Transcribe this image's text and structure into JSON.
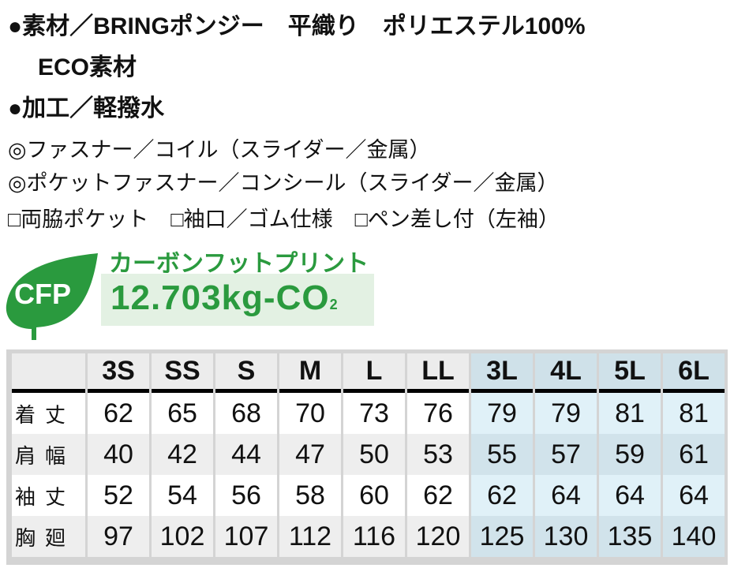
{
  "spec": {
    "material": "●素材／BRINGポンジー　平織り　ポリエステル100%",
    "material_note": "ECO素材",
    "processing": "●加工／軽撥水",
    "fastener": "◎ファスナー／コイル（スライダー／金属）",
    "pocket_fastener": "◎ポケットファスナー／コンシール（スライダー／金属）",
    "features": [
      "□両脇ポケット",
      "□袖口／ゴム仕様",
      "□ペン差し付（左袖）"
    ]
  },
  "cfp": {
    "badge": "CFP",
    "title": "カーボンフットプリント",
    "value": "12.703kg-CO",
    "subscript": "2",
    "color": "#2a9a3e"
  },
  "size_table": {
    "headers": [
      "3S",
      "SS",
      "S",
      "M",
      "L",
      "LL",
      "3L",
      "4L",
      "5L",
      "6L"
    ],
    "rows": [
      {
        "label": "着丈",
        "values": [
          "62",
          "65",
          "68",
          "70",
          "73",
          "76",
          "79",
          "79",
          "81",
          "81"
        ]
      },
      {
        "label": "肩幅",
        "values": [
          "40",
          "42",
          "44",
          "47",
          "50",
          "53",
          "55",
          "57",
          "59",
          "61"
        ]
      },
      {
        "label": "袖丈",
        "values": [
          "52",
          "54",
          "56",
          "58",
          "60",
          "62",
          "62",
          "64",
          "64",
          "64"
        ]
      },
      {
        "label": "胸廻",
        "values": [
          "97",
          "102",
          "107",
          "112",
          "116",
          "120",
          "125",
          "130",
          "135",
          "140"
        ]
      }
    ]
  }
}
